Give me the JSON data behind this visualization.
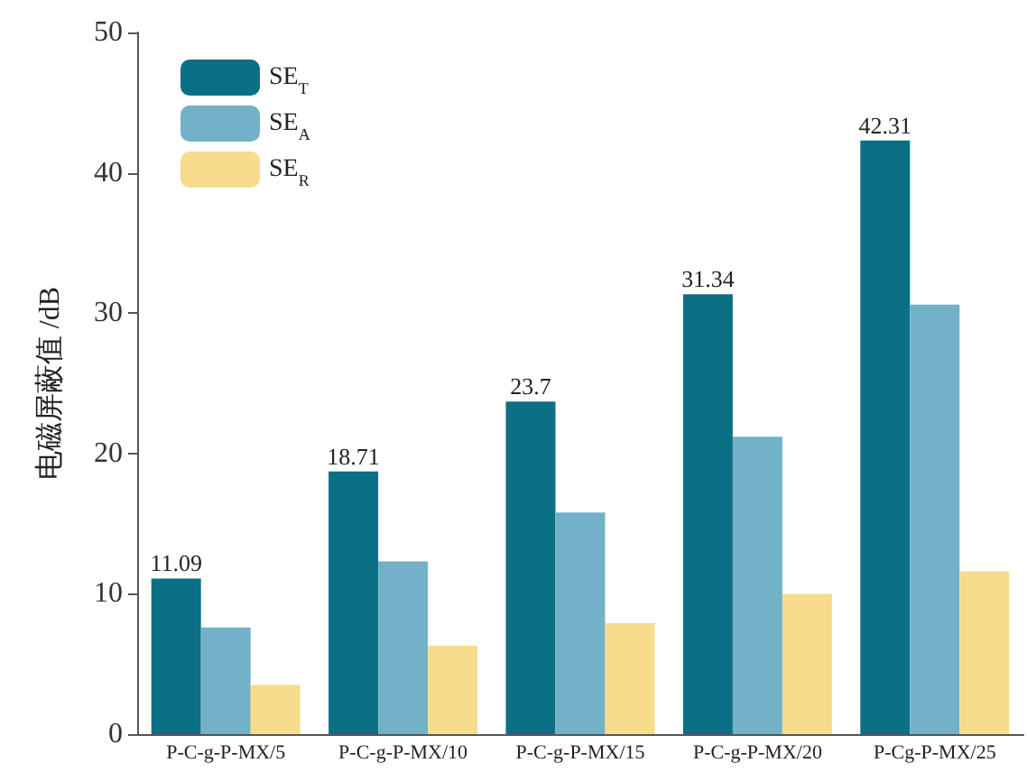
{
  "chart_data": {
    "type": "bar",
    "ylabel": "电磁屏蔽值 /dB",
    "categories": [
      "P-C-g-P-MX/5",
      "P-C-g-P-MX/10",
      "P-C-g-P-MX/15",
      "P-C-g-P-MX/20",
      "P-Cg-P-MX/25"
    ],
    "series": [
      {
        "name": "SE$_{T}$",
        "color": "#0b7086",
        "values": [
          11.09,
          18.71,
          23.7,
          31.34,
          42.31
        ],
        "value_labels": [
          "11.09",
          "18.71",
          "23.7",
          "31.34",
          "42.31"
        ]
      },
      {
        "name": "SE$_{A}$",
        "color": "#72b1c8",
        "values": [
          7.6,
          12.3,
          15.8,
          21.2,
          30.6
        ]
      },
      {
        "name": "SE$_{R}$",
        "color": "#f6dc8c",
        "values": [
          3.5,
          6.3,
          7.9,
          10.0,
          11.6
        ]
      }
    ],
    "ylim": [
      0,
      50
    ],
    "yticks": [
      0,
      10,
      20,
      30,
      40,
      50
    ],
    "grid": false,
    "legend": "top left"
  }
}
